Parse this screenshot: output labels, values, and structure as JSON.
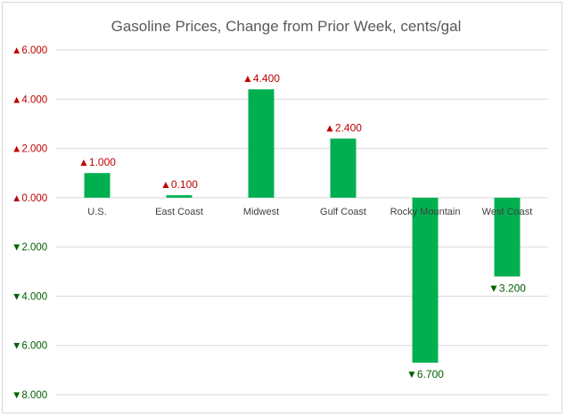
{
  "chart_data": {
    "type": "bar",
    "title": "Gasoline Prices, Change from Prior Week, cents/gal",
    "xlabel": "",
    "ylabel": "",
    "categories": [
      "U.S.",
      "East Coast",
      "Midwest",
      "Gulf Coast",
      "Rocky Mountain",
      "West Coast"
    ],
    "values": [
      1.0,
      0.1,
      4.4,
      2.4,
      -6.7,
      -3.2
    ],
    "data_labels": [
      "▲1.000",
      "▲0.100",
      "▲4.400",
      "▲2.400",
      "▼6.700",
      "▼3.200"
    ],
    "ylim": [
      -8,
      6
    ],
    "yticks": [
      6,
      4,
      2,
      0,
      -2,
      -4,
      -6,
      -8
    ],
    "ytick_labels": [
      "▲6.000",
      "▲4.000",
      "▲2.000",
      "▲0.000",
      "▼2.000",
      "▼4.000",
      "▼6.000",
      "▼8.000"
    ],
    "grid": true,
    "legend": "none",
    "colors": {
      "bar": "#00b050",
      "positive_text": "#c00000",
      "negative_text": "#006100",
      "title": "#595959",
      "grid": "#d9d9d9",
      "category_text": "#404040"
    }
  }
}
